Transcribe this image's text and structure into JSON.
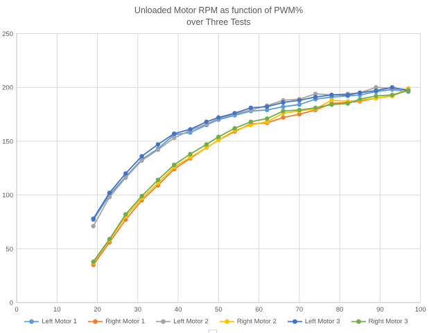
{
  "title": {
    "line1": "Unloaded Motor RPM as function of PWM%",
    "line2": "over Three Tests"
  },
  "colors": {
    "background": "#FFFFFF",
    "text": "#595959",
    "gridline": "#D9D9D9",
    "axis_line": "#BFBFBF"
  },
  "chart_data": {
    "type": "line",
    "title": "Unloaded Motor RPM as function of PWM% over Three Tests",
    "xlabel": "",
    "ylabel": "",
    "xlim": [
      0,
      100
    ],
    "ylim": [
      0,
      250
    ],
    "x_ticks": [
      0,
      10,
      20,
      30,
      40,
      50,
      60,
      70,
      80,
      90,
      100
    ],
    "y_ticks": [
      0,
      50,
      100,
      150,
      200,
      250
    ],
    "grid": true,
    "legend_position": "bottom",
    "x": [
      19,
      23,
      27,
      31,
      35,
      39,
      43,
      47,
      50,
      54,
      58,
      62,
      66,
      70,
      74,
      78,
      82,
      85,
      89,
      93,
      97
    ],
    "series": [
      {
        "name": "Left Motor 1",
        "color": "#5B9BD5",
        "values": [
          77,
          100,
          117,
          133,
          143,
          156,
          158,
          165,
          170,
          174,
          178,
          179,
          182,
          184,
          189,
          191,
          192,
          193,
          196,
          198,
          196
        ]
      },
      {
        "name": "Right Motor 1",
        "color": "#ED7D31",
        "values": [
          35,
          56,
          77,
          95,
          109,
          124,
          134,
          144,
          151,
          159,
          166,
          167,
          172,
          175,
          179,
          185,
          186,
          187,
          190,
          192,
          198
        ]
      },
      {
        "name": "Left Motor 2",
        "color": "#A5A5A5",
        "values": [
          71,
          98,
          116,
          132,
          142,
          153,
          160,
          166,
          171,
          175,
          179,
          183,
          188,
          189,
          194,
          193,
          194,
          195,
          200,
          199,
          198
        ]
      },
      {
        "name": "Right Motor 2",
        "color": "#FFC000",
        "values": [
          37,
          58,
          80,
          97,
          111,
          126,
          135,
          144,
          151,
          160,
          165,
          168,
          176,
          178,
          180,
          188,
          187,
          188,
          190,
          192,
          199
        ]
      },
      {
        "name": "Left Motor 3",
        "color": "#4472C4",
        "values": [
          78,
          102,
          120,
          136,
          147,
          157,
          161,
          168,
          172,
          176,
          181,
          182,
          186,
          188,
          191,
          193,
          193,
          195,
          197,
          200,
          197
        ]
      },
      {
        "name": "Right Motor 3",
        "color": "#70AD47",
        "values": [
          38,
          59,
          82,
          99,
          114,
          128,
          138,
          147,
          154,
          162,
          168,
          171,
          178,
          179,
          181,
          184,
          185,
          189,
          192,
          193,
          197
        ]
      }
    ]
  }
}
